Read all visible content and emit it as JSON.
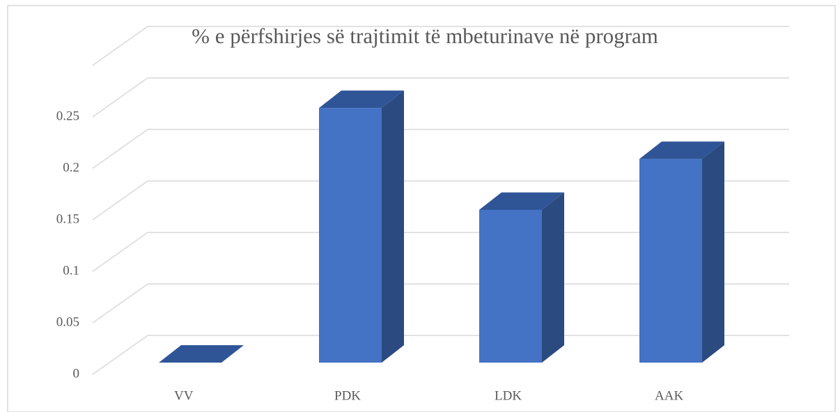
{
  "chart_data": {
    "type": "bar3d",
    "title": "% e përfshirjes së trajtimit të mbeturinave në program",
    "categories": [
      "VV",
      "PDK",
      "LDK",
      "AAK"
    ],
    "values": [
      0,
      0.25,
      0.15,
      0.2
    ],
    "color": "#4472c4",
    "ylim": [
      0,
      0.3
    ],
    "yticks": [
      0,
      0.05,
      0.1,
      0.15,
      0.2,
      0.25
    ],
    "grid": true
  }
}
